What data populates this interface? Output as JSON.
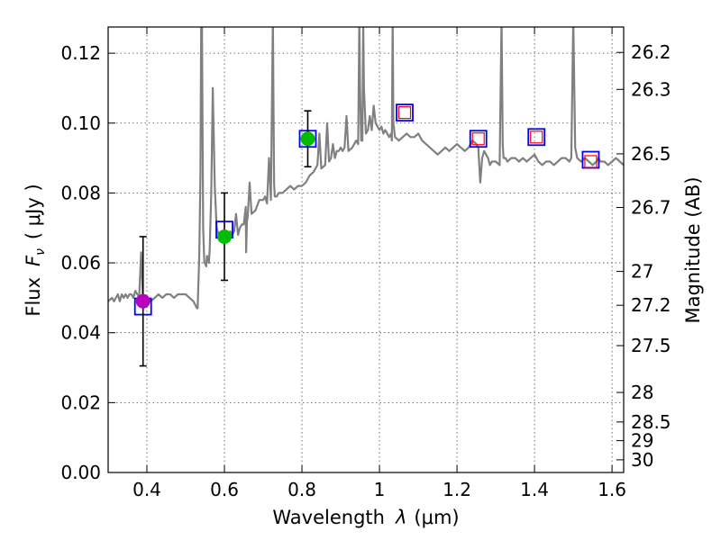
{
  "chart_data": {
    "type": "scatter",
    "xlabel_text": "Wavelength",
    "xlabel_symbol": "λ",
    "xlabel_unit": "(μm)",
    "ylabel_text": "Flux",
    "ylabel_symbol": "F",
    "ylabel_sub": "ν",
    "ylabel_unit": "( μJy )",
    "y2label": "Magnitude (AB)",
    "xlim": [
      0.3,
      1.63
    ],
    "ylim": [
      0.0,
      0.1275
    ],
    "xticks": [
      0.4,
      0.6,
      0.8,
      1.0,
      1.2,
      1.4,
      1.6
    ],
    "xtick_labels": [
      "0.4",
      "0.6",
      "0.8",
      "1",
      "1.2",
      "1.4",
      "1.6"
    ],
    "yticks": [
      0.0,
      0.02,
      0.04,
      0.06,
      0.08,
      0.1,
      0.12
    ],
    "ytick_labels": [
      "0.00",
      "0.02",
      "0.04",
      "0.06",
      "0.08",
      "0.10",
      "0.12"
    ],
    "magnitude_ticks": [
      "26.2",
      "26.3",
      "26.5",
      "26.7",
      "27",
      "27.2",
      "27.5",
      "28",
      "28.5",
      "29",
      "30"
    ],
    "magnitude_zeropoint_ujy": 23.9,
    "grid": true,
    "series": [
      {
        "name": "template spectrum",
        "kind": "line",
        "color": "#808080",
        "x": [
          0.3,
          0.31,
          0.315,
          0.32,
          0.325,
          0.33,
          0.335,
          0.34,
          0.345,
          0.35,
          0.355,
          0.36,
          0.365,
          0.37,
          0.375,
          0.38,
          0.385,
          0.39,
          0.4,
          0.41,
          0.42,
          0.43,
          0.44,
          0.45,
          0.46,
          0.47,
          0.48,
          0.49,
          0.5,
          0.51,
          0.52,
          0.529,
          0.531,
          0.535,
          0.538,
          0.54,
          0.542,
          0.545,
          0.548,
          0.55,
          0.553,
          0.555,
          0.558,
          0.56,
          0.562,
          0.566,
          0.57,
          0.575,
          0.58,
          0.585,
          0.59,
          0.595,
          0.6,
          0.605,
          0.61,
          0.615,
          0.62,
          0.625,
          0.63,
          0.635,
          0.64,
          0.645,
          0.65,
          0.655,
          0.656,
          0.658,
          0.66,
          0.665,
          0.67,
          0.68,
          0.69,
          0.7,
          0.705,
          0.71,
          0.715,
          0.72,
          0.722,
          0.725,
          0.728,
          0.73,
          0.735,
          0.74,
          0.75,
          0.76,
          0.77,
          0.78,
          0.79,
          0.8,
          0.81,
          0.82,
          0.83,
          0.84,
          0.845,
          0.85,
          0.86,
          0.865,
          0.87,
          0.875,
          0.88,
          0.885,
          0.89,
          0.895,
          0.9,
          0.905,
          0.91,
          0.915,
          0.92,
          0.93,
          0.94,
          0.945,
          0.948,
          0.95,
          0.953,
          0.956,
          0.958,
          0.96,
          0.965,
          0.97,
          0.975,
          0.98,
          0.985,
          0.99,
          0.995,
          1.0,
          1.005,
          1.01,
          1.015,
          1.02,
          1.025,
          1.03,
          1.032,
          1.034,
          1.036,
          1.04,
          1.05,
          1.06,
          1.07,
          1.08,
          1.09,
          1.1,
          1.11,
          1.12,
          1.13,
          1.14,
          1.15,
          1.16,
          1.17,
          1.18,
          1.19,
          1.2,
          1.21,
          1.22,
          1.23,
          1.24,
          1.25,
          1.255,
          1.258,
          1.26,
          1.265,
          1.27,
          1.275,
          1.28,
          1.285,
          1.29,
          1.3,
          1.31,
          1.315,
          1.318,
          1.32,
          1.325,
          1.33,
          1.34,
          1.35,
          1.36,
          1.37,
          1.38,
          1.39,
          1.4,
          1.41,
          1.42,
          1.43,
          1.44,
          1.45,
          1.46,
          1.47,
          1.48,
          1.49,
          1.495,
          1.5,
          1.505,
          1.51,
          1.52,
          1.53,
          1.54,
          1.55,
          1.56,
          1.565,
          1.57,
          1.58,
          1.59,
          1.6,
          1.61,
          1.62,
          1.63
        ],
        "y": [
          0.049,
          0.05,
          0.049,
          0.05,
          0.051,
          0.049,
          0.051,
          0.05,
          0.051,
          0.05,
          0.051,
          0.051,
          0.05,
          0.052,
          0.051,
          0.05,
          0.063,
          0.049,
          0.05,
          0.049,
          0.05,
          0.051,
          0.05,
          0.051,
          0.051,
          0.05,
          0.051,
          0.051,
          0.051,
          0.05,
          0.049,
          0.047,
          0.047,
          0.062,
          0.085,
          0.128,
          0.128,
          0.07,
          0.06,
          0.06,
          0.059,
          0.062,
          0.061,
          0.06,
          0.064,
          0.08,
          0.11,
          0.082,
          0.07,
          0.068,
          0.067,
          0.068,
          0.067,
          0.068,
          0.068,
          0.069,
          0.068,
          0.069,
          0.074,
          0.068,
          0.07,
          0.071,
          0.071,
          0.076,
          0.063,
          0.072,
          0.073,
          0.083,
          0.074,
          0.075,
          0.078,
          0.078,
          0.079,
          0.077,
          0.09,
          0.078,
          0.1,
          0.13,
          0.083,
          0.079,
          0.079,
          0.08,
          0.08,
          0.081,
          0.082,
          0.081,
          0.082,
          0.082,
          0.083,
          0.085,
          0.086,
          0.088,
          0.097,
          0.087,
          0.088,
          0.1,
          0.089,
          0.09,
          0.094,
          0.09,
          0.092,
          0.092,
          0.093,
          0.092,
          0.093,
          0.102,
          0.092,
          0.093,
          0.095,
          0.094,
          0.13,
          0.11,
          0.095,
          0.095,
          0.13,
          0.11,
          0.097,
          0.098,
          0.102,
          0.098,
          0.105,
          0.1,
          0.099,
          0.098,
          0.099,
          0.097,
          0.098,
          0.097,
          0.096,
          0.097,
          0.095,
          0.13,
          0.1,
          0.096,
          0.095,
          0.096,
          0.097,
          0.096,
          0.096,
          0.097,
          0.095,
          0.094,
          0.093,
          0.092,
          0.091,
          0.092,
          0.093,
          0.092,
          0.093,
          0.094,
          0.093,
          0.092,
          0.093,
          0.095,
          0.094,
          0.093,
          0.087,
          0.083,
          0.09,
          0.092,
          0.091,
          0.09,
          0.088,
          0.089,
          0.089,
          0.088,
          0.13,
          0.094,
          0.09,
          0.09,
          0.089,
          0.09,
          0.09,
          0.089,
          0.09,
          0.089,
          0.09,
          0.091,
          0.089,
          0.088,
          0.089,
          0.089,
          0.088,
          0.089,
          0.09,
          0.09,
          0.089,
          0.09,
          0.13,
          0.093,
          0.09,
          0.089,
          0.09,
          0.089,
          0.088,
          0.089,
          0.09,
          0.089,
          0.089,
          0.088,
          0.089,
          0.09,
          0.089,
          0.088
        ],
        "clip_top": true
      },
      {
        "name": "model photometry",
        "kind": "open-square",
        "color": "#0000ff",
        "x": [
          0.39,
          0.6,
          0.815,
          1.065,
          1.255,
          1.405,
          1.545
        ],
        "y": [
          0.0475,
          0.0695,
          0.0955,
          0.103,
          0.0955,
          0.096,
          0.0895
        ]
      },
      {
        "name": "observed photometry",
        "kind": "filled-circle-errorbar",
        "color": "#00bb00",
        "highlight_color": "#bb00bb",
        "x": [
          0.39,
          0.6,
          0.815
        ],
        "y": [
          0.049,
          0.0675,
          0.0955
        ],
        "yerr": [
          0.0185,
          0.0125,
          0.008
        ],
        "highlight_index": 0
      },
      {
        "name": "upper limits",
        "kind": "open-square-small",
        "color": "#ff0000",
        "x": [
          1.065,
          1.255,
          1.405,
          1.545
        ],
        "y": [
          0.103,
          0.0955,
          0.096,
          0.089
        ]
      }
    ]
  }
}
